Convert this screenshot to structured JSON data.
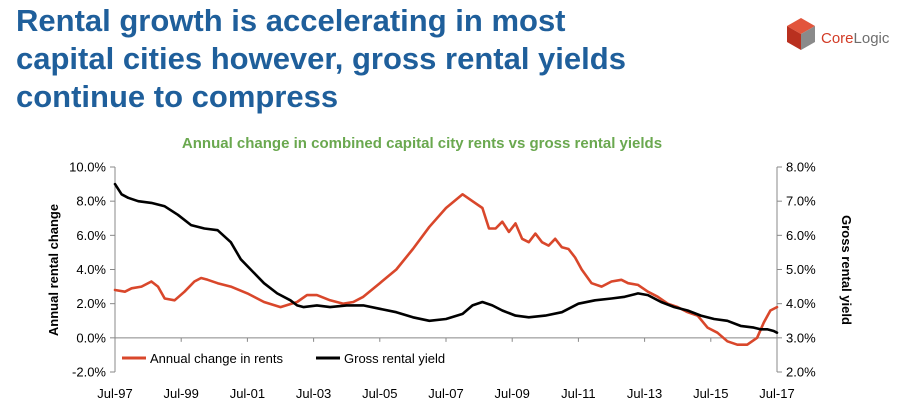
{
  "headline": {
    "lines": [
      "Rental growth is accelerating in most",
      "capital cities however, gross rental yields",
      "continue to compress"
    ]
  },
  "logo": {
    "brand_core": "Core",
    "brand_logic": "Logic"
  },
  "colors": {
    "headline": "#1f5f9b",
    "subtitle": "#6aa84f",
    "rents": "#d9472b",
    "yield": "#000000"
  },
  "chart_data": {
    "type": "line",
    "title": "Annual change in combined capital city rents vs gross rental yields",
    "ylabel": "Annual rental change",
    "y2label": "Gross rental yield",
    "x_tick_labels": [
      "Jul-97",
      "Jul-99",
      "Jul-01",
      "Jul-03",
      "Jul-05",
      "Jul-07",
      "Jul-09",
      "Jul-11",
      "Jul-13",
      "Jul-15",
      "Jul-17"
    ],
    "xlim": [
      1997.5,
      2017.5
    ],
    "ylim": [
      -2.0,
      10.0
    ],
    "y2lim": [
      2.0,
      8.0
    ],
    "y_tick_labels": [
      "-2.0%",
      "0.0%",
      "2.0%",
      "4.0%",
      "6.0%",
      "8.0%",
      "10.0%"
    ],
    "y2_tick_labels": [
      "2.0%",
      "3.0%",
      "4.0%",
      "5.0%",
      "6.0%",
      "7.0%",
      "8.0%"
    ],
    "legend": "bottom-left",
    "grid": false,
    "series": [
      {
        "name": "Annual change in rents",
        "axis": "left",
        "x": [
          1997.5,
          1997.8,
          1998.0,
          1998.3,
          1998.6,
          1998.8,
          1999.0,
          1999.3,
          1999.6,
          1999.9,
          2000.1,
          2000.3,
          2000.6,
          2001.0,
          2001.5,
          2002.0,
          2002.5,
          2003.0,
          2003.3,
          2003.6,
          2004.0,
          2004.4,
          2004.7,
          2005.0,
          2005.5,
          2006.0,
          2006.5,
          2007.0,
          2007.5,
          2008.0,
          2008.3,
          2008.6,
          2008.8,
          2009.0,
          2009.2,
          2009.4,
          2009.6,
          2009.8,
          2010.0,
          2010.2,
          2010.4,
          2010.6,
          2010.8,
          2011.0,
          2011.2,
          2011.4,
          2011.6,
          2011.9,
          2012.2,
          2012.5,
          2012.8,
          2013.0,
          2013.3,
          2013.6,
          2013.9,
          2014.2,
          2014.5,
          2014.8,
          2015.1,
          2015.4,
          2015.7,
          2016.0,
          2016.3,
          2016.6,
          2016.9,
          2017.1,
          2017.3,
          2017.5
        ],
        "values": [
          2.8,
          2.7,
          2.9,
          3.0,
          3.3,
          3.0,
          2.3,
          2.2,
          2.7,
          3.3,
          3.5,
          3.4,
          3.2,
          3.0,
          2.6,
          2.1,
          1.8,
          2.1,
          2.5,
          2.5,
          2.2,
          2.0,
          2.1,
          2.4,
          3.2,
          4.0,
          5.2,
          6.5,
          7.6,
          8.4,
          8.0,
          7.6,
          6.4,
          6.4,
          6.8,
          6.2,
          6.7,
          5.8,
          5.6,
          6.1,
          5.6,
          5.4,
          5.8,
          5.3,
          5.2,
          4.7,
          4.0,
          3.2,
          3.0,
          3.3,
          3.4,
          3.2,
          3.1,
          2.7,
          2.4,
          2.0,
          1.8,
          1.5,
          1.3,
          0.6,
          0.3,
          -0.2,
          -0.4,
          -0.4,
          0.0,
          0.9,
          1.6,
          1.8
        ]
      },
      {
        "name": "Gross rental yield",
        "axis": "right",
        "x": [
          1997.5,
          1997.7,
          1997.9,
          1998.2,
          1998.6,
          1999.0,
          1999.4,
          1999.8,
          2000.2,
          2000.6,
          2001.0,
          2001.3,
          2001.6,
          2002.0,
          2002.4,
          2002.8,
          2003.0,
          2003.2,
          2003.6,
          2004.0,
          2004.5,
          2005.0,
          2005.5,
          2006.0,
          2006.5,
          2007.0,
          2007.5,
          2008.0,
          2008.3,
          2008.6,
          2008.9,
          2009.2,
          2009.6,
          2010.0,
          2010.5,
          2011.0,
          2011.5,
          2012.0,
          2012.5,
          2012.9,
          2013.3,
          2013.6,
          2014.0,
          2014.4,
          2014.8,
          2015.2,
          2015.6,
          2016.0,
          2016.4,
          2016.8,
          2017.0,
          2017.2,
          2017.4,
          2017.5
        ],
        "values": [
          7.5,
          7.2,
          7.1,
          7.0,
          6.95,
          6.85,
          6.6,
          6.3,
          6.2,
          6.15,
          5.8,
          5.3,
          5.0,
          4.6,
          4.3,
          4.1,
          3.95,
          3.9,
          3.95,
          3.9,
          3.95,
          3.95,
          3.85,
          3.75,
          3.6,
          3.5,
          3.55,
          3.7,
          3.95,
          4.05,
          3.95,
          3.8,
          3.65,
          3.6,
          3.65,
          3.75,
          4.0,
          4.1,
          4.15,
          4.2,
          4.3,
          4.25,
          4.05,
          3.9,
          3.8,
          3.65,
          3.55,
          3.5,
          3.35,
          3.3,
          3.25,
          3.25,
          3.2,
          3.15
        ]
      }
    ]
  }
}
